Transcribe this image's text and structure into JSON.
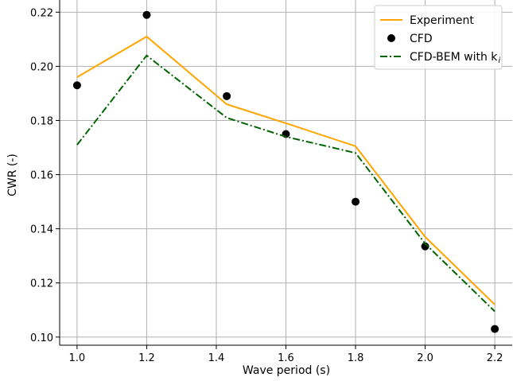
{
  "chart_data": {
    "type": "line",
    "xlabel": "Wave period (s)",
    "ylabel": "CWR (-)",
    "xlim": [
      0.95,
      2.25
    ],
    "ylim": [
      0.097,
      0.2245
    ],
    "xticks": [
      1.0,
      1.2,
      1.4,
      1.6,
      1.8,
      2.0,
      2.2
    ],
    "xtick_labels": [
      "1.0",
      "1.2",
      "1.4",
      "1.6",
      "1.8",
      "2.0",
      "2.2"
    ],
    "yticks": [
      0.1,
      0.12,
      0.14,
      0.16,
      0.18,
      0.2,
      0.22
    ],
    "ytick_labels": [
      "0.10",
      "0.12",
      "0.14",
      "0.16",
      "0.18",
      "0.20",
      "0.22"
    ],
    "grid": true,
    "legend_position": "top-right",
    "series": [
      {
        "name": "Experiment",
        "style": "line",
        "color": "#FFA500",
        "x": [
          1.0,
          1.2,
          1.43,
          1.6,
          1.8,
          2.0,
          2.2
        ],
        "y": [
          0.196,
          0.211,
          0.186,
          0.179,
          0.1705,
          0.137,
          0.112
        ]
      },
      {
        "name": "CFD",
        "style": "marker",
        "color": "#000000",
        "x": [
          1.0,
          1.2,
          1.43,
          1.6,
          1.8,
          2.0,
          2.2
        ],
        "y": [
          0.193,
          0.219,
          0.189,
          0.175,
          0.15,
          0.1335,
          0.103
        ]
      },
      {
        "name": "CFD-BEM with k",
        "name_subscript": "i",
        "style": "dashdot",
        "color": "#006400",
        "x": [
          1.0,
          1.2,
          1.43,
          1.6,
          1.8,
          2.0,
          2.2
        ],
        "y": [
          0.171,
          0.204,
          0.181,
          0.174,
          0.168,
          0.1345,
          0.1095
        ]
      }
    ]
  }
}
